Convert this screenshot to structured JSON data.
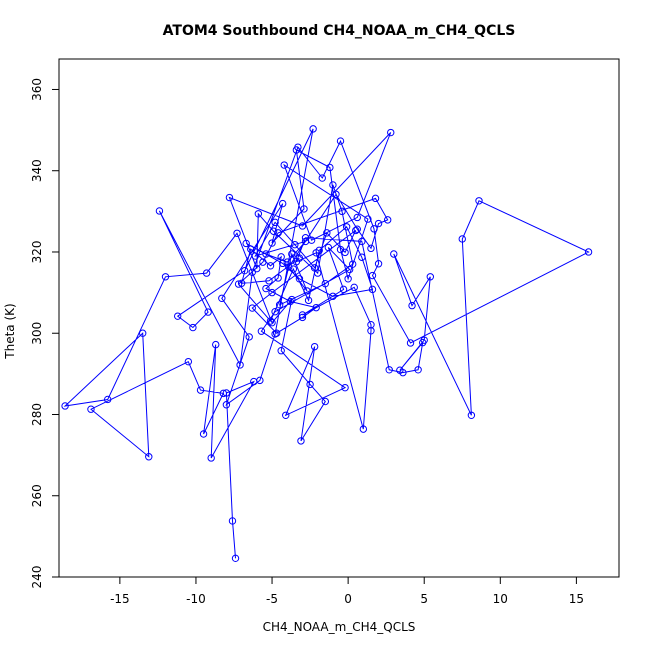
{
  "chart_data": {
    "type": "scatter",
    "title": "ATOM4 Southbound CH4_NOAA_m_CH4_QCLS",
    "xlabel": "CH4_NOAA_m_CH4_QCLS",
    "ylabel": "Theta (K)",
    "xlim": [
      -19.0,
      17.8
    ],
    "ylim": [
      240.0,
      367.5
    ],
    "xticks": [
      -15,
      -10,
      -5,
      0,
      5,
      10,
      15
    ],
    "yticks": [
      240,
      260,
      280,
      300,
      320,
      340,
      360
    ],
    "xtick_labels": [
      "-15",
      "-10",
      "-5",
      "0",
      "5",
      "10",
      "15"
    ],
    "ytick_labels": [
      "240",
      "260",
      "280",
      "300",
      "320",
      "340",
      "360"
    ],
    "marker": "open-circle",
    "connected": true,
    "color": "#0000ff",
    "series": [
      {
        "name": "Southbound",
        "x": [
          -7.4,
          -7.6,
          -8.0,
          -6.2,
          -9.0,
          -8.7,
          -9.5,
          -8.2,
          -9.7,
          -10.5,
          -16.9,
          -13.1,
          -13.5,
          -18.6,
          -15.8,
          -12.0,
          -9.3,
          -7.3,
          -5.0,
          -3.7,
          -4.4,
          -2.5,
          -1.5,
          -3.1,
          -2.2,
          -4.1,
          -0.2,
          -5.7,
          -4.8,
          0.1,
          -1.3,
          -0.3,
          -3.0,
          0.4,
          1.5,
          1.5,
          1.0,
          -2.1,
          -3.4,
          -2.8,
          0.9,
          2.7,
          3.6,
          4.6,
          4.9,
          3.4,
          5.0,
          5.4,
          4.2,
          3.0,
          8.1,
          7.5,
          8.6,
          15.8,
          4.1,
          1.6,
          2.0,
          1.7,
          -0.5,
          -1.7,
          -3.3,
          -6.3,
          -7.1,
          -12.4,
          -9.2,
          -10.2,
          -11.2,
          -6.8,
          -2.3,
          -4.8,
          -5.8,
          -8.0,
          -6.5,
          -8.3,
          -4.3,
          -5.0,
          -2.9,
          -3.4,
          -1.2,
          -0.5,
          0.0,
          1.3,
          -4.2,
          -2.4,
          0.6,
          2.8,
          -3.0,
          -7.8,
          -6.0,
          -5.9,
          -4.9,
          -2.0,
          -1.0,
          -0.4,
          0.3,
          -1.5,
          -4.5,
          -3.7,
          -2.7,
          -3.9,
          -0.8,
          0.6,
          1.5,
          2.0,
          2.6,
          1.8,
          -4.6,
          -5.6,
          -7.2,
          -5.1,
          -3.6,
          -2.6,
          -1.9,
          -0.1,
          0.9,
          1.6,
          -1.0,
          -3.2,
          -4.3,
          -6.7,
          -5.4,
          -4.0,
          -2.8,
          -6.1,
          -4.8,
          -3.5,
          -2.2,
          -1.4,
          -0.2,
          0.5,
          -5.0,
          -6.3,
          -4.7,
          -3.0,
          -2.1,
          -3.8,
          -5.4,
          -4.6,
          -4.4,
          -5.1,
          -6.4,
          -7.0,
          -5.2,
          -3.2
        ],
        "y": [
          244.6,
          253.8,
          285.3,
          288.1,
          269.3,
          297.2,
          275.2,
          285.2,
          286.0,
          293.0,
          281.3,
          269.6,
          300.0,
          282.1,
          283.7,
          313.9,
          314.8,
          324.6,
          302.6,
          308.3,
          295.7,
          287.4,
          283.2,
          273.5,
          296.7,
          279.8,
          286.6,
          300.5,
          305.3,
          315.7,
          321.1,
          310.8,
          304.5,
          311.3,
          302.1,
          300.6,
          276.4,
          319.8,
          317.6,
          323.5,
          322.6,
          291.0,
          290.3,
          291.0,
          297.7,
          290.9,
          298.3,
          313.9,
          306.8,
          319.5,
          279.8,
          323.2,
          332.6,
          320.0,
          297.6,
          314.2,
          317.1,
          325.7,
          347.3,
          338.2,
          345.8,
          315.0,
          292.2,
          330.1,
          305.2,
          301.4,
          304.2,
          315.4,
          350.3,
          299.8,
          288.4,
          282.4,
          299.1,
          308.6,
          331.9,
          322.2,
          330.6,
          345.1,
          340.8,
          320.6,
          313.4,
          328.1,
          341.4,
          322.9,
          328.5,
          349.4,
          326.4,
          333.4,
          315.9,
          329.4,
          325.1,
          314.8,
          336.5,
          330.0,
          317.0,
          312.2,
          307.0,
          319.5,
          310.4,
          316.3,
          334.2,
          325.6,
          320.9,
          327.0,
          327.9,
          333.2,
          324.7,
          317.5,
          312.1,
          303.0,
          315.8,
          308.1,
          320.4,
          326.2,
          318.7,
          310.8,
          309.1,
          313.4,
          317.2,
          322.1,
          319.5,
          317.5,
          322.6,
          319.0,
          327.3,
          321.8,
          316.1,
          324.7,
          319.9,
          325.3,
          310.0,
          306.2,
          300.0,
          303.9,
          306.3,
          307.8,
          311.0,
          313.6,
          318.8,
          316.6,
          320.7,
          312.3,
          312.9,
          318.5
        ]
      }
    ]
  }
}
